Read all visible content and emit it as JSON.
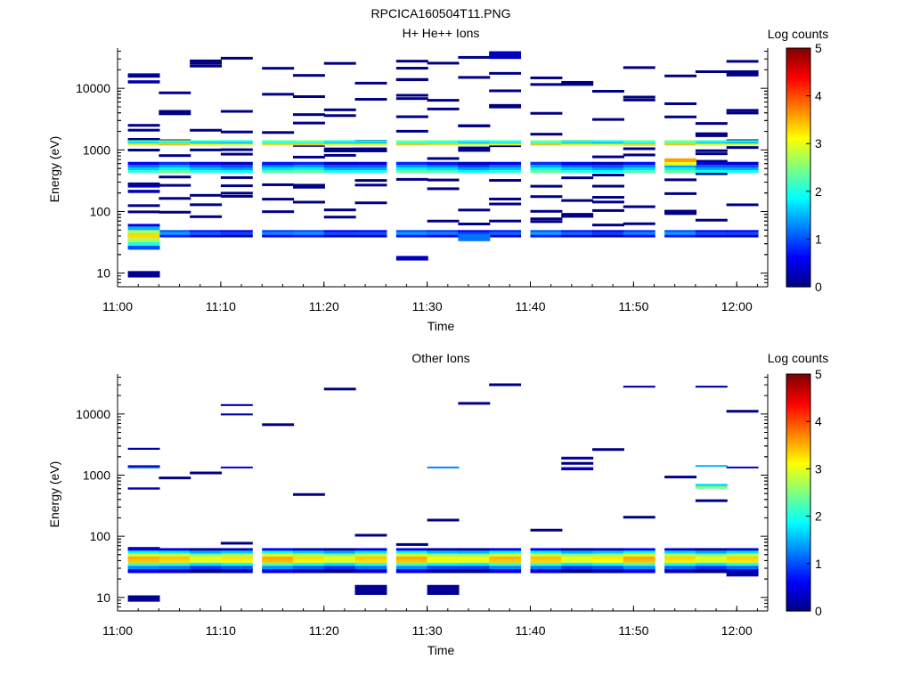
{
  "figure_title": "RPCICA160504T11.PNG",
  "chart_data": [
    {
      "type": "heatmap",
      "title": "H+ He++ Ions",
      "xlabel": "Time",
      "ylabel": "Energy (eV)",
      "x_ticks": [
        "11:00",
        "11:10",
        "11:20",
        "11:30",
        "11:40",
        "11:50",
        "12:00"
      ],
      "y_ticks": [
        "10",
        "100",
        "1000",
        "10000"
      ],
      "y_scale": "log",
      "ylim": [
        6,
        45000
      ],
      "xlim": [
        "11:00",
        "12:03"
      ],
      "colorbar": {
        "label": "Log counts",
        "ticks": [
          "0",
          "1",
          "2",
          "3",
          "4",
          "5"
        ],
        "range": [
          0,
          5
        ],
        "colormap": "jet"
      },
      "time_bins": [
        "11:01",
        "11:04",
        "11:07",
        "11:10",
        "11:14",
        "11:17",
        "11:20",
        "11:23",
        "11:27",
        "11:30",
        "11:33",
        "11:36",
        "11:40",
        "11:43",
        "11:46",
        "11:49",
        "11:53",
        "11:56",
        "11:59"
      ],
      "cells": [
        {
          "t": 0,
          "e": 8.5,
          "e2": 10.8,
          "v": 0.1
        },
        {
          "t": 0,
          "e": 24,
          "e2": 28,
          "v": 1
        },
        {
          "t": 0,
          "e": 28,
          "e2": 32,
          "v": 2
        },
        {
          "t": 0,
          "e": 32,
          "e2": 37,
          "v": 2.7
        },
        {
          "t": 0,
          "e": 37,
          "e2": 43,
          "v": 3.3
        },
        {
          "t": 0,
          "e": 43,
          "e2": 50,
          "v": 2.7
        },
        {
          "t": 0,
          "e": 50,
          "e2": 57,
          "v": 1.5
        },
        {
          "t": 0,
          "e": 57,
          "e2": 63,
          "v": 0.5
        },
        {
          "t": 0,
          "e": 200,
          "e2": 225,
          "v": 0.3
        },
        {
          "t": 0,
          "e": 245,
          "e2": 270,
          "v": 0.3
        },
        {
          "t": 0,
          "e": 12000,
          "e2": 13500,
          "v": 0.2
        },
        {
          "t": 0,
          "e": 16000,
          "e2": 17500,
          "v": 0.2
        },
        {
          "t": 16,
          "e": 560,
          "e2": 640,
          "v": 3
        },
        {
          "t": 16,
          "e": 640,
          "e2": 730,
          "v": 3.6
        },
        {
          "t": 16,
          "e": 1300,
          "e2": 1400,
          "v": 2.5
        },
        {
          "t": 8,
          "e": 16,
          "e2": 19,
          "v": 0.3
        },
        {
          "t": 10,
          "e": 33,
          "e2": 43,
          "v": 1.2
        },
        {
          "t": 11,
          "e": 30000,
          "e2": 40000,
          "v": 0.3
        }
      ],
      "bands": [
        {
          "e": 1180,
          "e2": 1260,
          "v": 3.2
        },
        {
          "e": 1260,
          "e2": 1350,
          "v": 1.8
        },
        {
          "e": 1350,
          "e2": 1440,
          "v": 2.3
        },
        {
          "e": 425,
          "e2": 470,
          "v": 2.1
        },
        {
          "e": 470,
          "e2": 520,
          "v": 1.6
        },
        {
          "e": 520,
          "e2": 570,
          "v": 1.2
        },
        {
          "e": 570,
          "e2": 640,
          "v": 0.6
        },
        {
          "e": 38,
          "e2": 42,
          "v": 0.5
        },
        {
          "e": 42,
          "e2": 46,
          "v": 1.2
        },
        {
          "e": 46,
          "e2": 50,
          "v": 0.8
        }
      ]
    },
    {
      "type": "heatmap",
      "title": "Other Ions",
      "xlabel": "Time",
      "ylabel": "Energy (eV)",
      "x_ticks": [
        "11:00",
        "11:10",
        "11:20",
        "11:30",
        "11:40",
        "11:50",
        "12:00"
      ],
      "y_ticks": [
        "10",
        "100",
        "1000",
        "10000"
      ],
      "y_scale": "log",
      "ylim": [
        6,
        45000
      ],
      "xlim": [
        "11:00",
        "12:03"
      ],
      "colorbar": {
        "label": "Log counts",
        "ticks": [
          "0",
          "1",
          "2",
          "3",
          "4",
          "5"
        ],
        "range": [
          0,
          5
        ],
        "colormap": "jet"
      },
      "time_bins": [
        "11:01",
        "11:04",
        "11:07",
        "11:10",
        "11:14",
        "11:17",
        "11:20",
        "11:23",
        "11:27",
        "11:30",
        "11:33",
        "11:36",
        "11:40",
        "11:43",
        "11:46",
        "11:49",
        "11:53",
        "11:56",
        "11:59"
      ],
      "cells": [
        {
          "t": 0,
          "e": 8.5,
          "e2": 10.8,
          "v": 0.1
        },
        {
          "t": 7,
          "e": 11,
          "e2": 16,
          "v": 0.1
        },
        {
          "t": 9,
          "e": 11,
          "e2": 16,
          "v": 0.1
        },
        {
          "t": 0,
          "e": 580,
          "e2": 630,
          "v": 0.3
        },
        {
          "t": 0,
          "e": 1300,
          "e2": 1380,
          "v": 1.2
        },
        {
          "t": 0,
          "e": 1380,
          "e2": 1450,
          "v": 0.3
        },
        {
          "t": 0,
          "e": 2600,
          "e2": 2800,
          "v": 0.2
        },
        {
          "t": 3,
          "e": 9500,
          "e2": 10200,
          "v": 0.2
        },
        {
          "t": 3,
          "e": 13500,
          "e2": 14500,
          "v": 0.2
        },
        {
          "t": 3,
          "e": 1300,
          "e2": 1380,
          "v": 0.4
        },
        {
          "t": 9,
          "e": 1300,
          "e2": 1380,
          "v": 1.3
        },
        {
          "t": 13,
          "e": 1800,
          "e2": 2000,
          "v": 0.3
        },
        {
          "t": 13,
          "e": 1200,
          "e2": 1350,
          "v": 0.3
        },
        {
          "t": 15,
          "e": 27000,
          "e2": 29000,
          "v": 0.2
        },
        {
          "t": 17,
          "e": 27000,
          "e2": 29000,
          "v": 0.2
        },
        {
          "t": 17,
          "e": 600,
          "e2": 660,
          "v": 2.5
        },
        {
          "t": 17,
          "e": 660,
          "e2": 720,
          "v": 1.7
        },
        {
          "t": 17,
          "e": 1380,
          "e2": 1460,
          "v": 1.5
        },
        {
          "t": 18,
          "e": 1300,
          "e2": 1380,
          "v": 0.3
        },
        {
          "t": 18,
          "e": 22,
          "e2": 26,
          "v": 0.2
        }
      ],
      "bands": [
        {
          "e": 25,
          "e2": 29,
          "v": 0.3
        },
        {
          "e": 29,
          "e2": 33,
          "v": 1.1
        },
        {
          "e": 33,
          "e2": 37,
          "v": 2.0
        },
        {
          "e": 37,
          "e2": 42,
          "v": 3.2
        },
        {
          "e": 42,
          "e2": 47,
          "v": 3.3
        },
        {
          "e": 47,
          "e2": 52,
          "v": 2.7
        },
        {
          "e": 52,
          "e2": 58,
          "v": 1.7
        },
        {
          "e": 58,
          "e2": 64,
          "v": 0.4
        }
      ]
    }
  ]
}
